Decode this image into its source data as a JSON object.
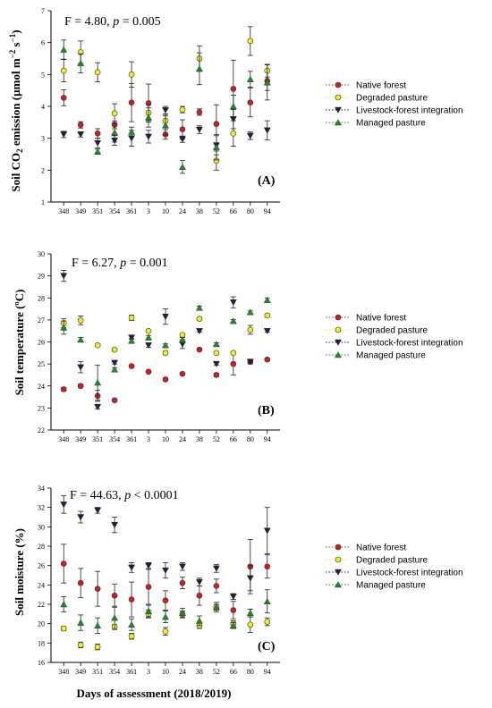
{
  "x_axis_title": "Days of assessment (2018/2019)",
  "legend": [
    {
      "label": "Native forest",
      "color": "#cc2020",
      "marker": "circle"
    },
    {
      "label": "Degraded pasture",
      "color": "#eeee22",
      "marker": "circle"
    },
    {
      "label": "Livestock-forest integration",
      "color": "#2a1a40",
      "marker": "triangle-down"
    },
    {
      "label": "Managed pasture",
      "color": "#228b22",
      "marker": "triangle-up"
    }
  ],
  "chart_data": [
    {
      "type": "scatter",
      "panel_label": "(A)",
      "stat_prefix": "F = 4.80, ",
      "stat_p": "p",
      "stat_suffix": " = 0.005",
      "ylabel_main": "Soil CO",
      "ylabel_sub": "2",
      "ylabel_rest": " emission (µmol m",
      "ylabel_sup1": "−2",
      "ylabel_s": " s",
      "ylabel_sup2": "−1",
      "ylabel_close": ")",
      "ylim": [
        1,
        7
      ],
      "yticks": [
        "1",
        "2",
        "3",
        "4",
        "5",
        "6",
        "7"
      ],
      "categories": [
        "348",
        "349",
        "351",
        "354",
        "361",
        "3",
        "10",
        "24",
        "38",
        "52",
        "66",
        "80",
        "94"
      ],
      "series": [
        {
          "name": "Native forest",
          "values": [
            4.27,
            3.42,
            3.15,
            3.42,
            4.12,
            4.1,
            3.12,
            3.28,
            3.82,
            3.45,
            4.55,
            4.12,
            4.8
          ],
          "err": [
            0.25,
            0.1,
            0.15,
            0.12,
            0.6,
            0.6,
            0.15,
            0.3,
            0.1,
            0.6,
            0.9,
            0.45,
            0.3
          ]
        },
        {
          "name": "Degraded pasture",
          "values": [
            5.12,
            5.7,
            5.07,
            3.78,
            5.0,
            3.8,
            3.55,
            3.9,
            5.5,
            2.3,
            3.15,
            6.05,
            5.12
          ],
          "err": [
            0.35,
            0.35,
            0.3,
            0.3,
            0.4,
            0.25,
            0.2,
            0.1,
            0.4,
            0.3,
            0.4,
            0.45,
            0.2
          ]
        },
        {
          "name": "Livestock-forest integration",
          "values": [
            3.12,
            3.12,
            2.85,
            2.93,
            3.0,
            3.05,
            3.88,
            2.97,
            3.27,
            2.78,
            3.6,
            3.08,
            3.25
          ],
          "err": [
            0.1,
            0.08,
            0.15,
            0.15,
            0.25,
            0.2,
            0.12,
            0.1,
            0.12,
            0.3,
            0.3,
            0.12,
            0.3
          ]
        },
        {
          "name": "Managed pasture",
          "values": [
            5.78,
            5.35,
            2.58,
            3.18,
            3.2,
            3.65,
            3.4,
            2.1,
            5.18,
            2.72,
            4.0,
            4.85,
            4.75
          ],
          "err": [
            0.3,
            0.3,
            0.08,
            0.3,
            0.15,
            0.3,
            0.3,
            0.2,
            0.5,
            0.4,
            0.35,
            0.25,
            0.55
          ]
        }
      ]
    },
    {
      "type": "scatter",
      "panel_label": "(B)",
      "stat_prefix": "F = 6.27, ",
      "stat_p": "p",
      "stat_suffix": " = 0.001",
      "ylabel_main": "Soil temperature (ºC)",
      "ylim": [
        22,
        30
      ],
      "yticks": [
        "22",
        "23",
        "24",
        "25",
        "26",
        "27",
        "28",
        "29",
        "30"
      ],
      "categories": [
        "348",
        "349",
        "351",
        "354",
        "361",
        "3",
        "10",
        "24",
        "38",
        "52",
        "66",
        "80",
        "94"
      ],
      "series": [
        {
          "name": "Native forest",
          "values": [
            23.85,
            24.0,
            23.55,
            23.35,
            24.9,
            24.65,
            24.3,
            24.55,
            25.65,
            24.5,
            25.0,
            25.1,
            25.2
          ],
          "err": [
            0.08,
            0.08,
            0.25,
            0.05,
            0.06,
            0.05,
            0.06,
            0.05,
            0.06,
            0.08,
            0.5,
            0.1,
            0.05
          ]
        },
        {
          "name": "Degraded pasture",
          "values": [
            26.85,
            26.98,
            25.85,
            25.65,
            27.1,
            26.5,
            25.5,
            26.32,
            27.05,
            25.5,
            25.5,
            26.55,
            27.2
          ],
          "err": [
            0.2,
            0.2,
            0.05,
            0.05,
            0.12,
            0.05,
            0.08,
            0.05,
            0.05,
            0.05,
            0.05,
            0.2,
            0.05
          ]
        },
        {
          "name": "Livestock-forest integration",
          "values": [
            29.0,
            24.85,
            23.05,
            25.05,
            26.2,
            25.85,
            27.15,
            25.9,
            26.5,
            25.0,
            27.8,
            25.1,
            26.5
          ],
          "err": [
            0.25,
            0.25,
            0.1,
            0.05,
            0.08,
            0.1,
            0.35,
            0.2,
            0.05,
            0.05,
            0.25,
            0.1,
            0.05
          ]
        },
        {
          "name": "Managed pasture",
          "values": [
            26.65,
            26.1,
            24.15,
            24.75,
            26.05,
            26.2,
            25.85,
            26.1,
            27.55,
            25.9,
            26.95,
            27.35,
            27.9
          ],
          "err": [
            0.3,
            0.1,
            0.8,
            0.08,
            0.1,
            0.1,
            0.06,
            0.1,
            0.08,
            0.06,
            0.06,
            0.06,
            0.1
          ]
        }
      ]
    },
    {
      "type": "scatter",
      "panel_label": "(C)",
      "stat_prefix": "F = 44.63, ",
      "stat_p": "p",
      "stat_suffix": " < 0.0001",
      "ylabel_main": "Soil moisture (%)",
      "ylim": [
        16,
        34
      ],
      "yticks": [
        "16",
        "18",
        "20",
        "22",
        "24",
        "26",
        "28",
        "30",
        "32",
        "34"
      ],
      "categories": [
        "348",
        "349",
        "351",
        "354",
        "361",
        "3",
        "10",
        "24",
        "38",
        "52",
        "66",
        "80",
        "94"
      ],
      "series": [
        {
          "name": "Native forest",
          "values": [
            26.2,
            24.2,
            23.6,
            22.9,
            22.5,
            23.8,
            22.4,
            24.2,
            22.9,
            23.9,
            21.4,
            25.9,
            25.9
          ],
          "err": [
            2.0,
            1.5,
            1.8,
            1.2,
            1.8,
            1.8,
            1.0,
            0.6,
            1.0,
            0.7,
            0.9,
            2.8,
            1.2
          ]
        },
        {
          "name": "Degraded pasture",
          "values": [
            19.5,
            17.8,
            17.6,
            19.7,
            18.7,
            21.0,
            19.2,
            21.0,
            19.8,
            21.7,
            20.0,
            19.9,
            20.2
          ],
          "err": [
            0.2,
            0.3,
            0.3,
            0.2,
            0.3,
            0.4,
            0.4,
            0.3,
            0.3,
            0.3,
            0.3,
            0.8,
            0.4
          ]
        },
        {
          "name": "Livestock-forest integration",
          "values": [
            32.3,
            31.0,
            31.7,
            30.2,
            25.8,
            26.0,
            25.5,
            25.9,
            24.3,
            25.7,
            22.8,
            24.7,
            29.6
          ],
          "err": [
            0.9,
            0.6,
            0.3,
            0.8,
            0.5,
            0.3,
            0.8,
            0.4,
            0.4,
            0.4,
            0.3,
            1.3,
            2.4
          ]
        },
        {
          "name": "Managed pasture",
          "values": [
            22.0,
            20.1,
            19.8,
            20.6,
            19.9,
            21.3,
            20.7,
            21.1,
            20.3,
            21.7,
            19.8,
            21.1,
            22.3
          ],
          "err": [
            0.8,
            0.8,
            0.8,
            1.2,
            0.6,
            0.6,
            0.6,
            0.5,
            0.5,
            0.5,
            0.3,
            0.4,
            1.2
          ]
        }
      ]
    }
  ]
}
